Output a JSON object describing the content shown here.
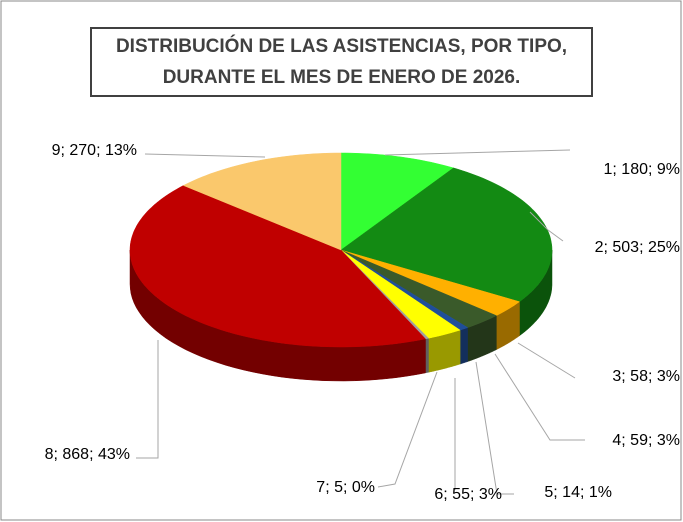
{
  "chart_data": {
    "type": "pie3d",
    "title": "DISTRIBUCIÓN DE LAS ASISTENCIAS, POR TIPO, DURANTE EL MES DE ENERO DE 2026.",
    "categories": [
      "1",
      "2",
      "3",
      "4",
      "5",
      "6",
      "7",
      "8",
      "9"
    ],
    "values": [
      180,
      503,
      58,
      59,
      14,
      55,
      5,
      868,
      270
    ],
    "value_labels": [
      "1; 180; 9%",
      "2; 503; 25%",
      "3; 58; 3%",
      "4; 59; 3%",
      "5; 14; 1%",
      "6; 55; 3%",
      "7; 5; 0%",
      "8; 868; 43%",
      "9; 270; 13%"
    ],
    "colors": [
      "#33ff33",
      "#138a13",
      "#ffb000",
      "#3a5a2a",
      "#1f4e9a",
      "#ffff00",
      "#a0a0a0",
      "#c00000",
      "#fac86c"
    ]
  }
}
